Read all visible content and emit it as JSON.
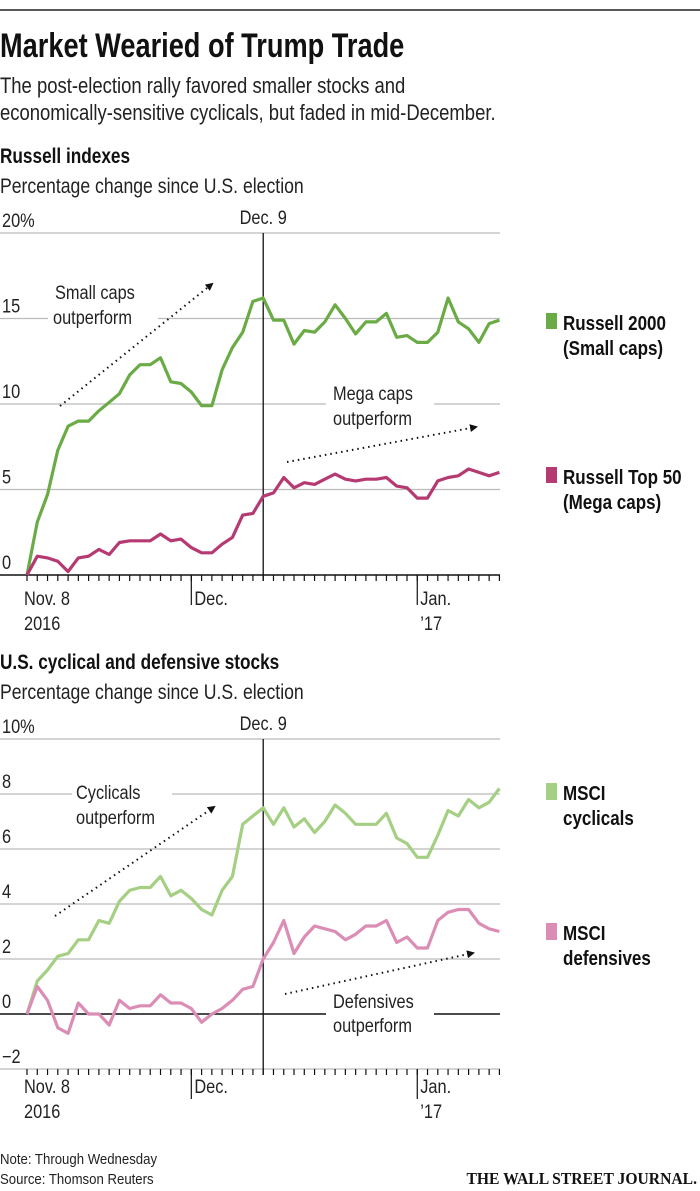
{
  "header": {
    "title": "Market Wearied of Trump Trade",
    "subtitle_line1": "The post-election rally favored smaller stocks and",
    "subtitle_line2": "economically-sensitive cyclicals, but faded in mid-December."
  },
  "footer": {
    "note": "Note: Through Wednesday",
    "source": "Source: Thomson Reuters",
    "logo": "THE WALL STREET JOURNAL."
  },
  "colors": {
    "russell2000": "#6aab45",
    "russelltop50": "#b63a72",
    "cyclicals": "#a5cf82",
    "defensives": "#db8db5"
  },
  "chart_data": [
    {
      "type": "line",
      "title": "Russell indexes",
      "subtitle": "Percentage change since U.S. election",
      "ylim": [
        0,
        20
      ],
      "yticks": [
        "0",
        "5",
        "10",
        "15",
        "20%"
      ],
      "ytick_values": [
        0,
        5,
        10,
        15,
        20
      ],
      "x_labels": [
        {
          "index": 0,
          "line1": "Nov. 8",
          "line2": "2016"
        },
        {
          "index": 16,
          "line1": "Dec.",
          "line2": ""
        },
        {
          "index": 38,
          "line1": "Jan.",
          "line2": "’17"
        }
      ],
      "marker": {
        "index": 23,
        "label": "Dec. 9"
      },
      "annotations": [
        {
          "line1": "Small caps",
          "line2": "outperform"
        },
        {
          "line1": "Mega caps",
          "line2": "outperform"
        }
      ],
      "series": [
        {
          "name": "Russell 2000",
          "name2": "(Small caps)",
          "color_key": "russell2000",
          "values": [
            0,
            3.1,
            4.7,
            7.3,
            8.7,
            9.0,
            9.0,
            9.6,
            10.1,
            10.6,
            11.7,
            12.3,
            12.3,
            12.7,
            11.3,
            11.2,
            10.7,
            9.9,
            9.9,
            12.0,
            13.3,
            14.2,
            16.0,
            16.2,
            14.9,
            14.9,
            13.5,
            14.3,
            14.2,
            14.8,
            15.8,
            15.0,
            14.1,
            14.8,
            14.8,
            15.3,
            13.9,
            14.0,
            13.6,
            13.6,
            14.2,
            16.2,
            14.8,
            14.4,
            13.6,
            14.7,
            14.9
          ]
        },
        {
          "name": "Russell Top 50",
          "name2": "(Mega caps)",
          "color_key": "russelltop50",
          "values": [
            0,
            1.1,
            1.0,
            0.8,
            0.2,
            1.0,
            1.1,
            1.5,
            1.2,
            1.9,
            2.0,
            2.0,
            2.0,
            2.4,
            2.0,
            2.1,
            1.6,
            1.3,
            1.3,
            1.8,
            2.2,
            3.5,
            3.6,
            4.6,
            4.8,
            5.7,
            5.1,
            5.4,
            5.3,
            5.6,
            5.9,
            5.6,
            5.5,
            5.6,
            5.6,
            5.7,
            5.2,
            5.1,
            4.5,
            4.5,
            5.5,
            5.7,
            5.8,
            6.2,
            6.0,
            5.8,
            6.0
          ]
        }
      ]
    },
    {
      "type": "line",
      "title": "U.S. cyclical and defensive stocks",
      "subtitle": "Percentage change since U.S. election",
      "ylim": [
        -2,
        10
      ],
      "yticks": [
        "−2",
        "0",
        "2",
        "4",
        "6",
        "8",
        "10%"
      ],
      "ytick_values": [
        -2,
        0,
        2,
        4,
        6,
        8,
        10
      ],
      "x_labels": [
        {
          "index": 0,
          "line1": "Nov. 8",
          "line2": "2016"
        },
        {
          "index": 16,
          "line1": "Dec.",
          "line2": ""
        },
        {
          "index": 38,
          "line1": "Jan.",
          "line2": "’17"
        }
      ],
      "marker": {
        "index": 23,
        "label": "Dec. 9"
      },
      "annotations": [
        {
          "line1": "Cyclicals",
          "line2": "outperform"
        },
        {
          "line1": "Defensives",
          "line2": "outperform"
        }
      ],
      "series": [
        {
          "name": "MSCI",
          "name2": "cyclicals",
          "color_key": "cyclicals",
          "values": [
            0,
            1.2,
            1.6,
            2.1,
            2.2,
            2.7,
            2.7,
            3.4,
            3.3,
            4.1,
            4.5,
            4.6,
            4.6,
            5.0,
            4.3,
            4.5,
            4.2,
            3.8,
            3.6,
            4.5,
            5.0,
            6.9,
            7.2,
            7.5,
            6.9,
            7.5,
            6.8,
            7.1,
            6.6,
            7.0,
            7.6,
            7.3,
            6.9,
            6.9,
            6.9,
            7.3,
            6.4,
            6.2,
            5.7,
            5.7,
            6.5,
            7.4,
            7.2,
            7.8,
            7.5,
            7.7,
            8.2
          ]
        },
        {
          "name": "MSCI",
          "name2": "defensives",
          "color_key": "defensives",
          "values": [
            0,
            1.0,
            0.5,
            -0.5,
            -0.7,
            0.4,
            0,
            0,
            -0.4,
            0.5,
            0.2,
            0.3,
            0.3,
            0.7,
            0.4,
            0.4,
            0.2,
            -0.3,
            0,
            0.2,
            0.5,
            0.9,
            1.0,
            2.0,
            2.6,
            3.4,
            2.2,
            2.8,
            3.2,
            3.1,
            3.0,
            2.7,
            2.9,
            3.2,
            3.2,
            3.4,
            2.6,
            2.8,
            2.4,
            2.4,
            3.4,
            3.7,
            3.8,
            3.8,
            3.3,
            3.1,
            3.0
          ]
        }
      ]
    }
  ]
}
